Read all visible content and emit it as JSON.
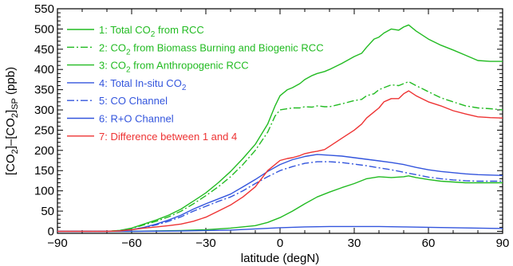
{
  "chart_data": {
    "type": "line",
    "xlabel": "latitude (degN)",
    "ylabel": "[CO2]–[CO2]SP (ppb)",
    "ylabel_parts": {
      "open1": "[CO",
      "sub1": "2",
      "mid": "]–[CO",
      "sub2": "2",
      "close": "]",
      "sub3": "SP",
      "unit": " (ppb)"
    },
    "xlim": [
      -90,
      90
    ],
    "ylim": [
      -5,
      550
    ],
    "x_ticks": [
      -90,
      -60,
      -30,
      0,
      30,
      60,
      90
    ],
    "y_ticks": [
      0,
      50,
      100,
      150,
      200,
      250,
      300,
      350,
      400,
      450,
      500,
      550
    ],
    "x_tick_labels": [
      "−90",
      "−60",
      "−30",
      "0",
      "30",
      "60",
      "90"
    ],
    "y_tick_labels": [
      "0",
      "50",
      "100",
      "150",
      "200",
      "250",
      "300",
      "350",
      "400",
      "450",
      "500",
      "550"
    ],
    "grid": false,
    "legend_position": "top-left",
    "series": [
      {
        "name": "1: Total CO2 from RCC",
        "legend": [
          "1: Total CO",
          "2",
          " from RCC"
        ],
        "color": "#22bb22",
        "dash": "solid",
        "x": [
          -90,
          -80,
          -70,
          -65,
          -60,
          -55,
          -50,
          -45,
          -40,
          -35,
          -30,
          -25,
          -20,
          -15,
          -10,
          -5,
          -2,
          0,
          3,
          5,
          8,
          10,
          13,
          15,
          18,
          20,
          25,
          30,
          33,
          35,
          38,
          40,
          42,
          45,
          48,
          50,
          52,
          55,
          60,
          65,
          70,
          75,
          80,
          85,
          90
        ],
        "values": [
          0,
          0,
          0,
          2,
          8,
          18,
          28,
          40,
          55,
          75,
          95,
          120,
          148,
          180,
          215,
          265,
          310,
          335,
          350,
          355,
          365,
          375,
          385,
          390,
          395,
          400,
          415,
          432,
          440,
          455,
          475,
          480,
          490,
          500,
          497,
          505,
          510,
          495,
          475,
          460,
          448,
          435,
          422,
          420,
          420
        ]
      },
      {
        "name": "2: CO2 from Biomass Burning and Biogenic RCC",
        "legend": [
          "2: CO",
          "2",
          " from Biomass Burning and Biogenic RCC"
        ],
        "color": "#22bb22",
        "dash": "dashdot",
        "x": [
          -90,
          -80,
          -70,
          -65,
          -60,
          -55,
          -50,
          -45,
          -40,
          -35,
          -30,
          -25,
          -20,
          -15,
          -10,
          -5,
          -2,
          0,
          3,
          5,
          8,
          10,
          13,
          15,
          18,
          20,
          25,
          30,
          33,
          35,
          38,
          40,
          42,
          45,
          48,
          50,
          52,
          55,
          60,
          65,
          70,
          75,
          80,
          85,
          90
        ],
        "values": [
          0,
          0,
          0,
          2,
          7,
          16,
          25,
          36,
          50,
          68,
          88,
          110,
          135,
          165,
          200,
          245,
          285,
          300,
          303,
          305,
          305,
          308,
          307,
          310,
          308,
          308,
          315,
          323,
          326,
          335,
          340,
          350,
          355,
          362,
          360,
          365,
          370,
          360,
          345,
          330,
          320,
          310,
          305,
          303,
          300
        ]
      },
      {
        "name": "3: CO2 from Anthropogenic RCC",
        "legend": [
          "3: CO",
          "2",
          " from Anthropogenic RCC"
        ],
        "color": "#22bb22",
        "dash": "solid",
        "x": [
          -90,
          -70,
          -60,
          -50,
          -40,
          -30,
          -20,
          -10,
          -5,
          0,
          5,
          10,
          15,
          20,
          25,
          30,
          35,
          40,
          45,
          50,
          52,
          55,
          60,
          65,
          70,
          75,
          80,
          85,
          90
        ],
        "values": [
          0,
          0,
          0,
          1,
          2,
          4,
          8,
          14,
          22,
          34,
          50,
          68,
          85,
          97,
          108,
          118,
          130,
          135,
          133,
          135,
          137,
          133,
          128,
          124,
          122,
          120,
          120,
          120,
          120
        ]
      },
      {
        "name": "4: Total In-situ CO2",
        "legend": [
          "4: Total In-situ CO",
          "2",
          ""
        ],
        "color": "#3355dd",
        "dash": "solid",
        "x": [
          -90,
          -80,
          -70,
          -65,
          -60,
          -55,
          -50,
          -45,
          -40,
          -35,
          -30,
          -25,
          -20,
          -15,
          -10,
          -5,
          0,
          5,
          10,
          15,
          20,
          25,
          30,
          35,
          40,
          45,
          50,
          55,
          60,
          65,
          70,
          75,
          80,
          85,
          90
        ],
        "values": [
          0,
          0,
          0,
          1,
          4,
          10,
          18,
          28,
          40,
          55,
          68,
          80,
          92,
          110,
          128,
          148,
          165,
          177,
          185,
          190,
          188,
          186,
          182,
          178,
          174,
          170,
          165,
          158,
          152,
          148,
          145,
          142,
          140,
          139,
          138
        ]
      },
      {
        "name": "5: CO Channel",
        "legend": [
          "5: CO Channel"
        ],
        "color": "#3355dd",
        "dash": "dashdot",
        "x": [
          -90,
          -80,
          -70,
          -65,
          -60,
          -55,
          -50,
          -45,
          -40,
          -35,
          -30,
          -25,
          -20,
          -15,
          -10,
          -5,
          0,
          5,
          10,
          15,
          20,
          25,
          30,
          35,
          40,
          45,
          50,
          55,
          60,
          65,
          70,
          75,
          80,
          85,
          90
        ],
        "values": [
          0,
          0,
          0,
          1,
          4,
          9,
          16,
          25,
          36,
          50,
          62,
          74,
          85,
          100,
          118,
          135,
          150,
          160,
          168,
          172,
          172,
          170,
          166,
          162,
          157,
          152,
          146,
          140,
          134,
          130,
          127,
          125,
          124,
          124,
          124
        ]
      },
      {
        "name": "6: R+O Channel",
        "legend": [
          "6: R+O Channel"
        ],
        "color": "#3355dd",
        "dash": "solid",
        "x": [
          -90,
          -60,
          -40,
          -20,
          -10,
          0,
          10,
          20,
          30,
          40,
          50,
          60,
          70,
          80,
          90
        ],
        "values": [
          0,
          0,
          1,
          3,
          6,
          9,
          11,
          12,
          12,
          12,
          11,
          10,
          9,
          8,
          7
        ]
      },
      {
        "name": "7: Difference between 1 and 4",
        "legend": [
          "7: Difference between 1 and 4"
        ],
        "color": "#ee3333",
        "dash": "solid",
        "x": [
          -90,
          -70,
          -65,
          -60,
          -55,
          -50,
          -45,
          -40,
          -35,
          -30,
          -25,
          -20,
          -15,
          -10,
          -5,
          0,
          3,
          5,
          8,
          10,
          13,
          15,
          18,
          20,
          25,
          30,
          33,
          35,
          38,
          40,
          42,
          45,
          48,
          50,
          52,
          55,
          60,
          65,
          70,
          75,
          80,
          85,
          90
        ],
        "values": [
          0,
          0,
          1,
          4,
          8,
          11,
          14,
          18,
          25,
          35,
          50,
          65,
          85,
          110,
          150,
          175,
          180,
          182,
          187,
          192,
          196,
          198,
          202,
          210,
          230,
          250,
          265,
          280,
          295,
          305,
          320,
          328,
          328,
          340,
          347,
          335,
          320,
          310,
          298,
          290,
          283,
          281,
          280
        ]
      }
    ]
  }
}
